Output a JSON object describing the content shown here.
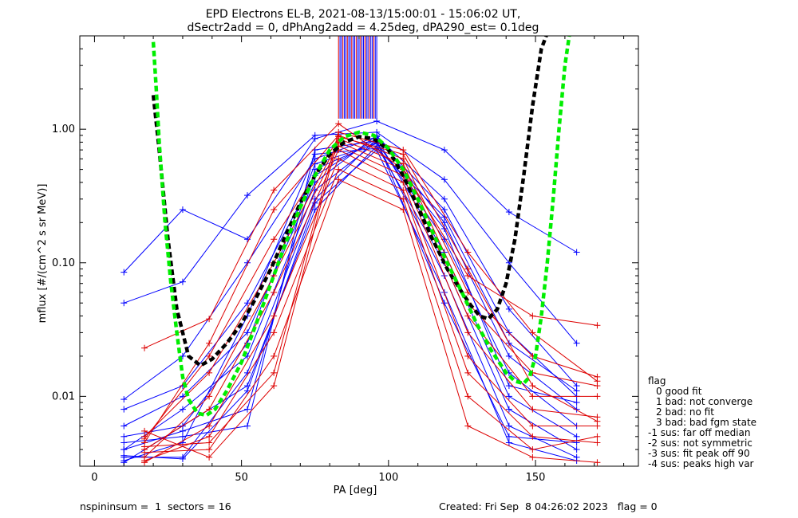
{
  "header": {
    "title_line1": "EPD Electrons EL-B, 2021-08-13/15:00:01 - 15:06:02 UT,",
    "title_line2": "dSectr2add = 0, dPhAng2add = 4.25deg, dPA290_est=   0.1deg"
  },
  "footer": {
    "left": "nspininsum =  1  sectors = 16",
    "right": "Created: Fri Sep  8 04:26:02 2023   flag = 0"
  },
  "legend": {
    "title": "flag",
    "items": [
      "0 good fit",
      "1 bad: not converge",
      "2 bad: no fit",
      "3 bad: bad fgm state",
      "-1 sus: far off median",
      "-2 sus: not symmetric",
      "-3 sus: fit peak off 90",
      "-4 sus: peaks high var"
    ]
  },
  "colors": {
    "blue": "#0000ff",
    "red": "#dd0000",
    "black": "#000000",
    "green": "#00ee00"
  },
  "chart_data": {
    "type": "line",
    "xlabel": "PA [deg]",
    "ylabel": "mflux [#/(cm^2 s sr MeV)]",
    "xlim": [
      -5,
      185
    ],
    "ylim": [
      0.003,
      5
    ],
    "yscale": "log",
    "x_ticks": [
      0,
      50,
      100,
      150
    ],
    "x_tick_labels": [
      "0",
      "50",
      "100",
      "150"
    ],
    "y_ticks": [
      0.01,
      0.1,
      1.0
    ],
    "y_tick_labels": [
      "0.01",
      "0.10",
      "1.00"
    ],
    "series": [
      {
        "color": "blue",
        "x": [
          10,
          30,
          52,
          75,
          96,
          119,
          141,
          164
        ],
        "y": [
          0.085,
          0.25,
          0.15,
          0.85,
          1.15,
          0.7,
          0.24,
          0.12
        ]
      },
      {
        "color": "blue",
        "x": [
          10,
          30,
          52,
          75,
          96,
          119,
          141,
          164
        ],
        "y": [
          0.05,
          0.072,
          0.32,
          0.9,
          0.95,
          0.42,
          0.1,
          0.025
        ]
      },
      {
        "color": "blue",
        "x": [
          10,
          30,
          52,
          75,
          96,
          119,
          141,
          164
        ],
        "y": [
          0.0095,
          0.02,
          0.1,
          0.6,
          0.88,
          0.3,
          0.045,
          0.012
        ]
      },
      {
        "color": "blue",
        "x": [
          10,
          30,
          52,
          75,
          96,
          119,
          141,
          164
        ],
        "y": [
          0.008,
          0.012,
          0.05,
          0.45,
          0.85,
          0.25,
          0.03,
          0.01
        ]
      },
      {
        "color": "blue",
        "x": [
          10,
          30,
          52,
          75,
          96,
          119,
          141,
          164
        ],
        "y": [
          0.006,
          0.01,
          0.03,
          0.4,
          0.9,
          0.2,
          0.02,
          0.008
        ]
      },
      {
        "color": "blue",
        "x": [
          10,
          30,
          52,
          75,
          96,
          119,
          141,
          164
        ],
        "y": [
          0.004,
          0.008,
          0.02,
          0.35,
          0.8,
          0.15,
          0.015,
          0.006
        ]
      },
      {
        "color": "blue",
        "x": [
          10,
          30,
          52,
          75,
          96,
          119,
          141,
          164
        ],
        "y": [
          0.0035,
          0.0035,
          0.015,
          0.3,
          0.85,
          0.12,
          0.01,
          0.005
        ]
      },
      {
        "color": "blue",
        "x": [
          10,
          30,
          52,
          75,
          96,
          119,
          141,
          164
        ],
        "y": [
          0.0032,
          0.006,
          0.012,
          0.25,
          0.75,
          0.1,
          0.008,
          0.004
        ]
      },
      {
        "color": "blue",
        "x": [
          10,
          30,
          52,
          75,
          96,
          119,
          141,
          164
        ],
        "y": [
          0.004,
          0.0055,
          0.008,
          0.5,
          0.8,
          0.08,
          0.006,
          0.0035
        ]
      },
      {
        "color": "blue",
        "x": [
          10,
          30,
          52,
          75,
          96,
          119,
          141,
          164
        ],
        "y": [
          0.0045,
          0.005,
          0.006,
          0.7,
          0.82,
          0.05,
          0.005,
          0.0045
        ]
      },
      {
        "color": "blue",
        "x": [
          10,
          30,
          52,
          75,
          96,
          119,
          141,
          164
        ],
        "y": [
          0.005,
          0.006,
          0.025,
          0.55,
          0.78,
          0.18,
          0.012,
          0.009
        ]
      },
      {
        "color": "blue",
        "x": [
          10,
          30,
          52,
          75,
          96,
          119,
          141,
          164
        ],
        "y": [
          0.0033,
          0.0045,
          0.04,
          0.65,
          0.72,
          0.22,
          0.025,
          0.011
        ]
      },
      {
        "color": "blue",
        "x": [
          10,
          30,
          52,
          75,
          96,
          119,
          141,
          164
        ],
        "y": [
          0.0036,
          0.0034,
          0.011,
          0.28,
          0.7,
          0.06,
          0.0045,
          0.0033
        ]
      },
      {
        "color": "red",
        "x": [
          17,
          39,
          61,
          83,
          105,
          127,
          149,
          171
        ],
        "y": [
          0.023,
          0.038,
          0.35,
          1.1,
          0.5,
          0.08,
          0.04,
          0.034
        ]
      },
      {
        "color": "red",
        "x": [
          17,
          39,
          61,
          83,
          105,
          127,
          149,
          171
        ],
        "y": [
          0.0045,
          0.025,
          0.25,
          0.9,
          0.6,
          0.06,
          0.02,
          0.014
        ]
      },
      {
        "color": "red",
        "x": [
          17,
          39,
          61,
          83,
          105,
          127,
          149,
          171
        ],
        "y": [
          0.0048,
          0.02,
          0.15,
          0.85,
          0.55,
          0.05,
          0.015,
          0.012
        ]
      },
      {
        "color": "red",
        "x": [
          17,
          39,
          61,
          83,
          105,
          127,
          149,
          171
        ],
        "y": [
          0.005,
          0.015,
          0.1,
          0.8,
          0.5,
          0.04,
          0.01,
          0.01
        ]
      },
      {
        "color": "red",
        "x": [
          17,
          39,
          61,
          83,
          105,
          127,
          149,
          171
        ],
        "y": [
          0.0035,
          0.01,
          0.08,
          0.75,
          0.45,
          0.03,
          0.008,
          0.007
        ]
      },
      {
        "color": "red",
        "x": [
          17,
          39,
          61,
          83,
          105,
          127,
          149,
          171
        ],
        "y": [
          0.004,
          0.008,
          0.06,
          0.7,
          0.4,
          0.02,
          0.006,
          0.006
        ]
      },
      {
        "color": "red",
        "x": [
          17,
          39,
          61,
          83,
          105,
          127,
          149,
          171
        ],
        "y": [
          0.0032,
          0.006,
          0.04,
          0.6,
          0.35,
          0.015,
          0.005,
          0.0045
        ]
      },
      {
        "color": "red",
        "x": [
          17,
          39,
          61,
          83,
          105,
          127,
          149,
          171
        ],
        "y": [
          0.0033,
          0.005,
          0.03,
          0.5,
          0.3,
          0.01,
          0.004,
          0.005
        ]
      },
      {
        "color": "red",
        "x": [
          17,
          39,
          61,
          83,
          105,
          127,
          149,
          171
        ],
        "y": [
          0.0038,
          0.004,
          0.02,
          0.42,
          0.25,
          0.006,
          0.0035,
          0.0032
        ]
      },
      {
        "color": "red",
        "x": [
          17,
          39,
          61,
          83,
          105,
          127,
          149,
          171
        ],
        "y": [
          0.0042,
          0.0045,
          0.015,
          0.95,
          0.7,
          0.12,
          0.03,
          0.013
        ]
      },
      {
        "color": "red",
        "x": [
          17,
          39,
          61,
          83,
          105,
          127,
          149,
          171
        ],
        "y": [
          0.0055,
          0.0035,
          0.012,
          0.88,
          0.65,
          0.09,
          0.012,
          0.0065
        ]
      }
    ],
    "fit_curves": [
      {
        "color": "black",
        "style": "dashed",
        "x": [
          20,
          22,
          25,
          28,
          32,
          36,
          40,
          45,
          50,
          55,
          60,
          65,
          70,
          75,
          80,
          85,
          90,
          95,
          100,
          105,
          110,
          115,
          120,
          125,
          128,
          131,
          134,
          137,
          140,
          143,
          146,
          149,
          152,
          155
        ],
        "y": [
          1.8,
          0.7,
          0.15,
          0.045,
          0.02,
          0.017,
          0.019,
          0.025,
          0.035,
          0.055,
          0.09,
          0.16,
          0.28,
          0.45,
          0.65,
          0.8,
          0.88,
          0.85,
          0.7,
          0.45,
          0.26,
          0.15,
          0.09,
          0.06,
          0.048,
          0.04,
          0.038,
          0.045,
          0.07,
          0.15,
          0.45,
          1.5,
          4.0,
          6.0
        ]
      },
      {
        "color": "green",
        "style": "dashed",
        "x": [
          20,
          21,
          22,
          24,
          26,
          28,
          30,
          32,
          35,
          38,
          41,
          45,
          50,
          55,
          60,
          65,
          70,
          75,
          80,
          85,
          90,
          95,
          100,
          105,
          110,
          115,
          120,
          125,
          130,
          135,
          140,
          143,
          146,
          148,
          150,
          152,
          154,
          156,
          158,
          160,
          162
        ],
        "y": [
          4.5,
          2.0,
          0.8,
          0.2,
          0.07,
          0.03,
          0.014,
          0.0095,
          0.0075,
          0.0072,
          0.008,
          0.011,
          0.018,
          0.035,
          0.07,
          0.14,
          0.26,
          0.45,
          0.7,
          0.88,
          0.95,
          0.9,
          0.72,
          0.5,
          0.3,
          0.17,
          0.1,
          0.06,
          0.035,
          0.022,
          0.015,
          0.013,
          0.0125,
          0.014,
          0.02,
          0.04,
          0.1,
          0.3,
          1.0,
          3.0,
          6.0
        ]
      }
    ],
    "sector_markers": {
      "x_min": 83,
      "x_max": 96,
      "y_bottom": 1.2
    }
  }
}
